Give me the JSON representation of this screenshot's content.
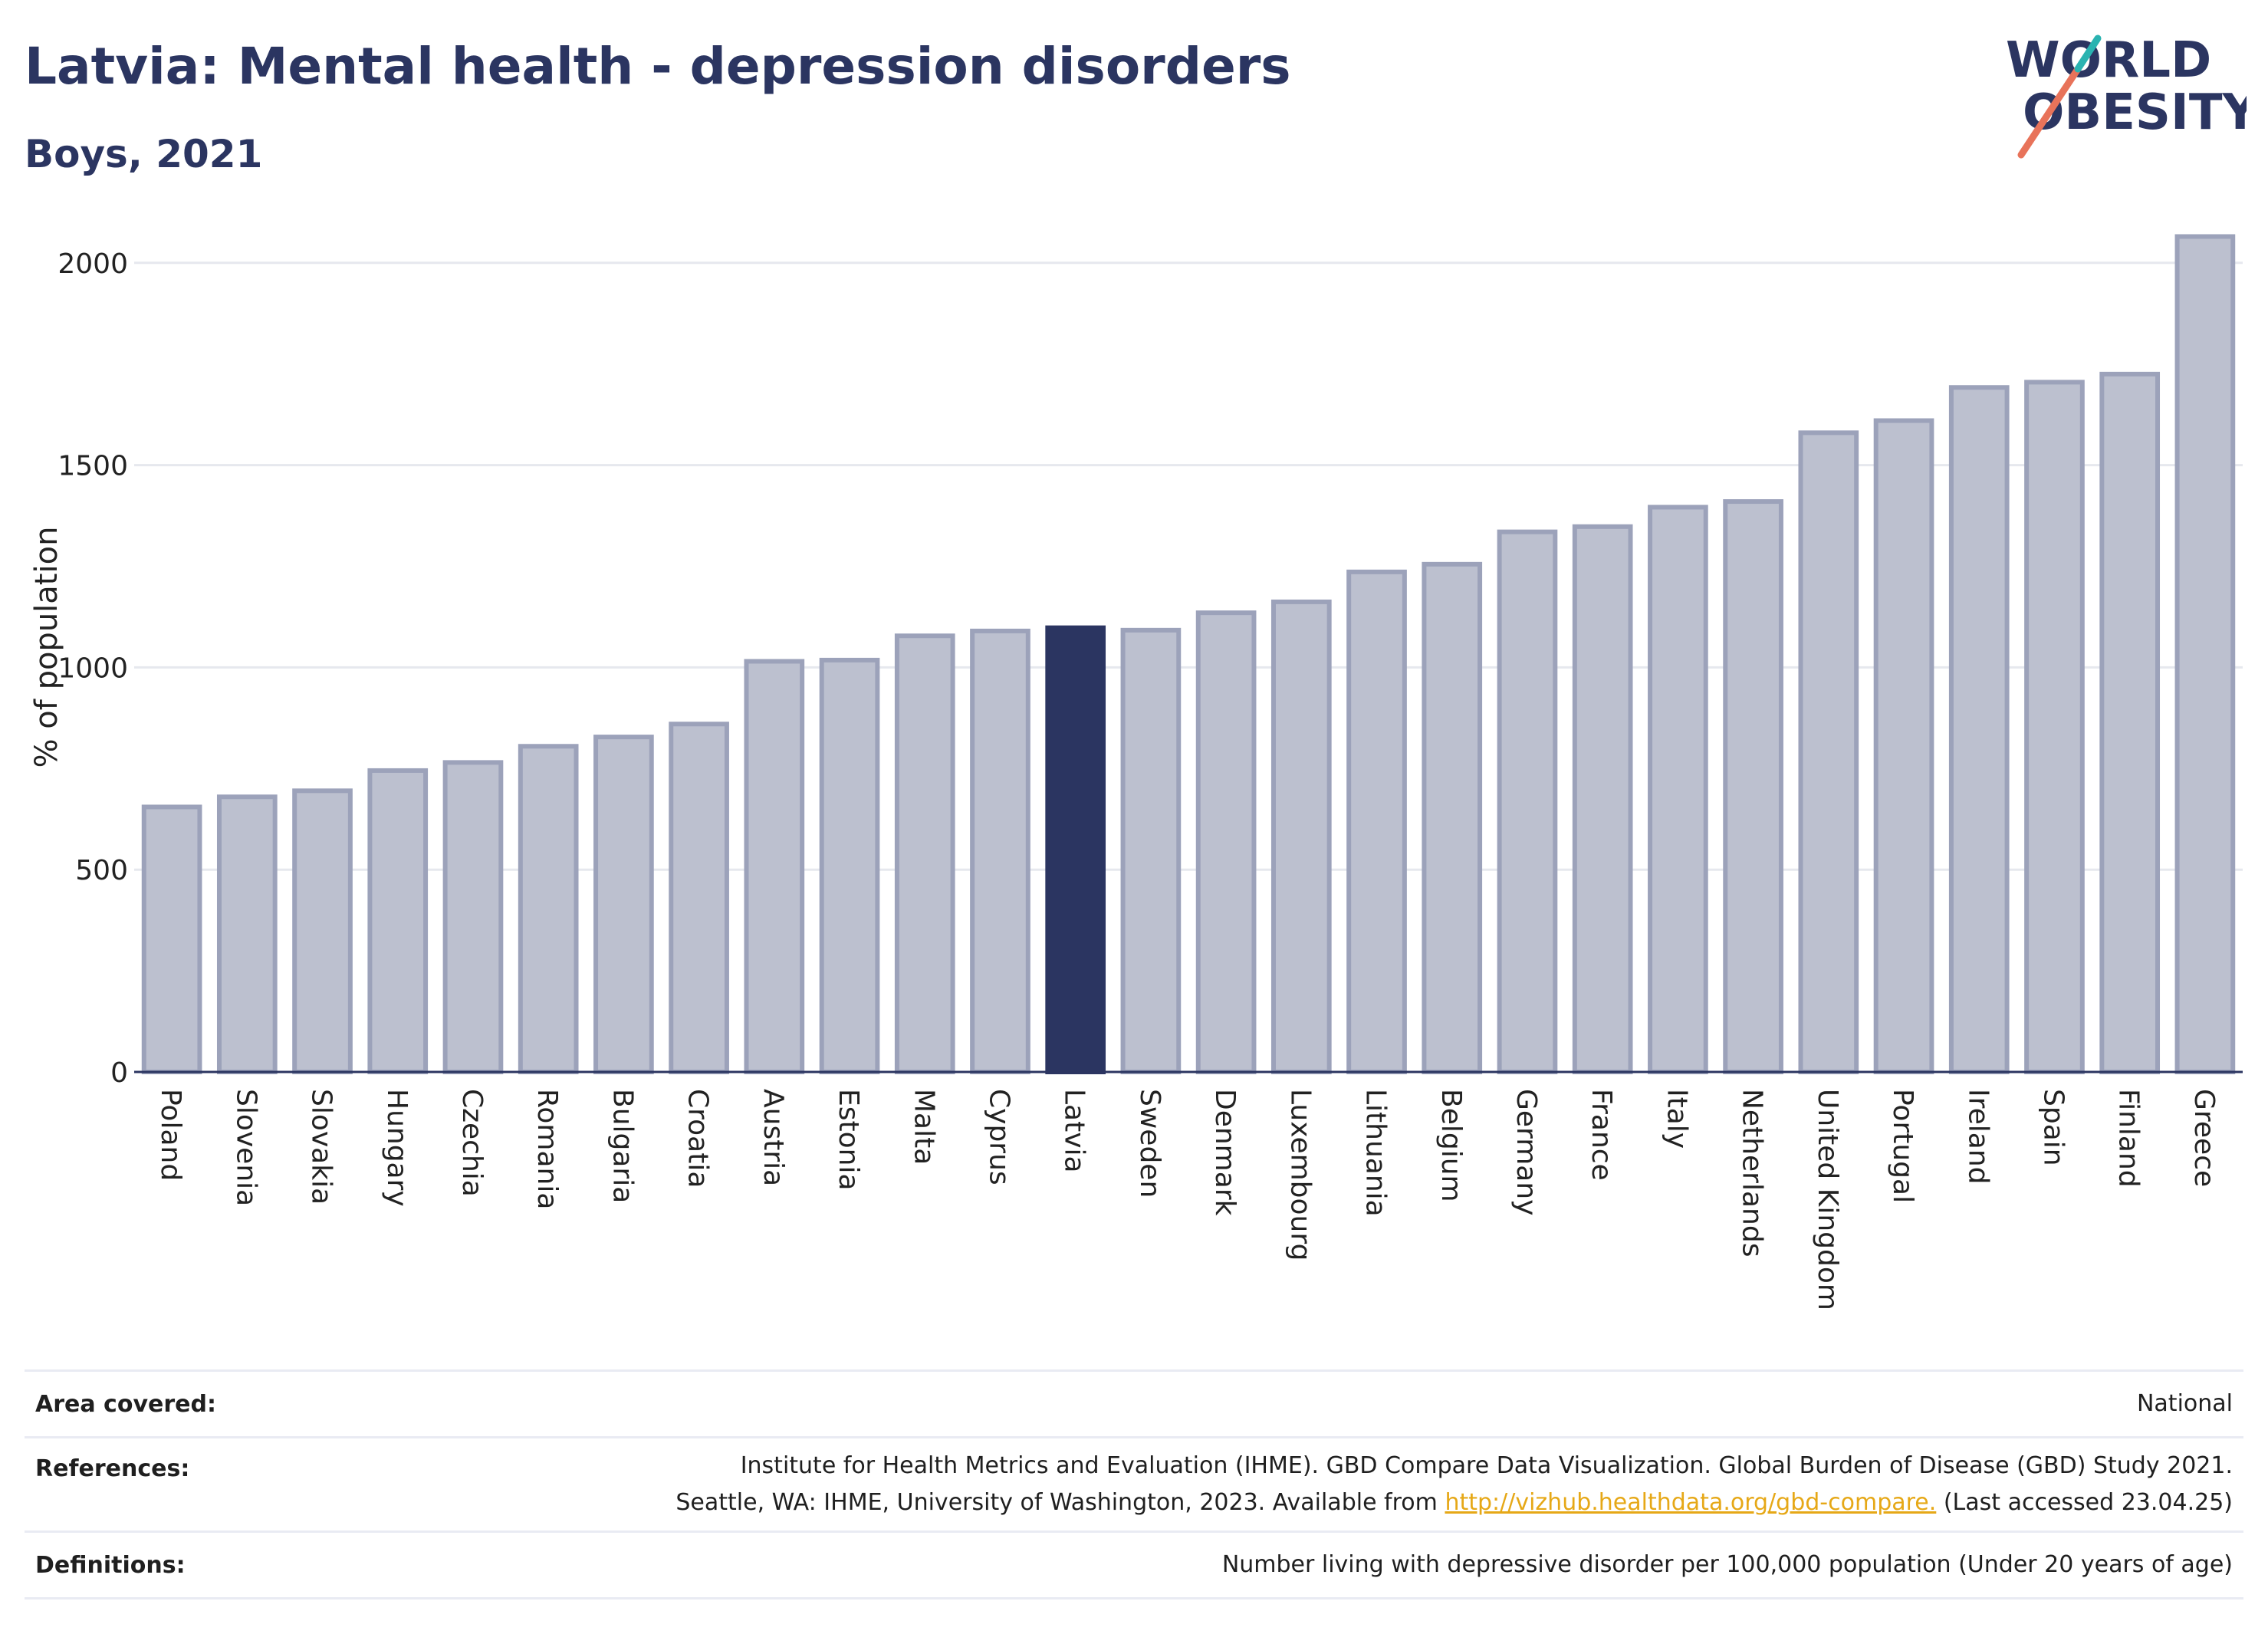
{
  "header": {
    "title": "Latvia: Mental health - depression disorders",
    "subtitle": "Boys, 2021"
  },
  "logo": {
    "line1": "WORLD",
    "line2": "OBESITY",
    "accent_colors": [
      "#e8735a",
      "#2ab3b1"
    ]
  },
  "chart_data": {
    "type": "bar",
    "ylabel": "% of population",
    "xlabel": "",
    "ylim": [
      0,
      2100
    ],
    "yticks": [
      0,
      500,
      1000,
      1500,
      2000
    ],
    "grid": true,
    "highlight": "Latvia",
    "colors": {
      "bar": "#bcc0cf",
      "bar_edge": "#9ca2ba",
      "highlight": "#2b3561"
    },
    "categories": [
      "Poland",
      "Slovenia",
      "Slovakia",
      "Hungary",
      "Czechia",
      "Romania",
      "Bulgaria",
      "Croatia",
      "Austria",
      "Estonia",
      "Malta",
      "Cyprus",
      "Latvia",
      "Sweden",
      "Denmark",
      "Luxembourg",
      "Lithuania",
      "Belgium",
      "Germany",
      "France",
      "Italy",
      "Netherlands",
      "United Kingdom",
      "Portugal",
      "Ireland",
      "Spain",
      "Finland",
      "Greece"
    ],
    "values": [
      655,
      680,
      695,
      745,
      765,
      805,
      828,
      860,
      1015,
      1018,
      1078,
      1090,
      1098,
      1092,
      1135,
      1162,
      1236,
      1255,
      1335,
      1348,
      1396,
      1410,
      1580,
      1610,
      1692,
      1705,
      1725,
      2065
    ]
  },
  "footer": {
    "area_label": "Area covered:",
    "area_value": "National",
    "references_label": "References:",
    "references_line1": "Institute for Health Metrics and Evaluation (IHME). GBD Compare Data Visualization. Global Burden of Disease (GBD) Study 2021.",
    "references_line2_pre": "Seattle, WA: IHME, University of Washington, 2023. Available from",
    "references_link": "http://vizhub.healthdata.org/gbd-compare.",
    "references_line2_post": "(Last accessed 23.04.25)",
    "definitions_label": "Definitions:",
    "definitions_value": "Number living with depressive disorder per 100,000 population (Under 20 years of age)"
  }
}
